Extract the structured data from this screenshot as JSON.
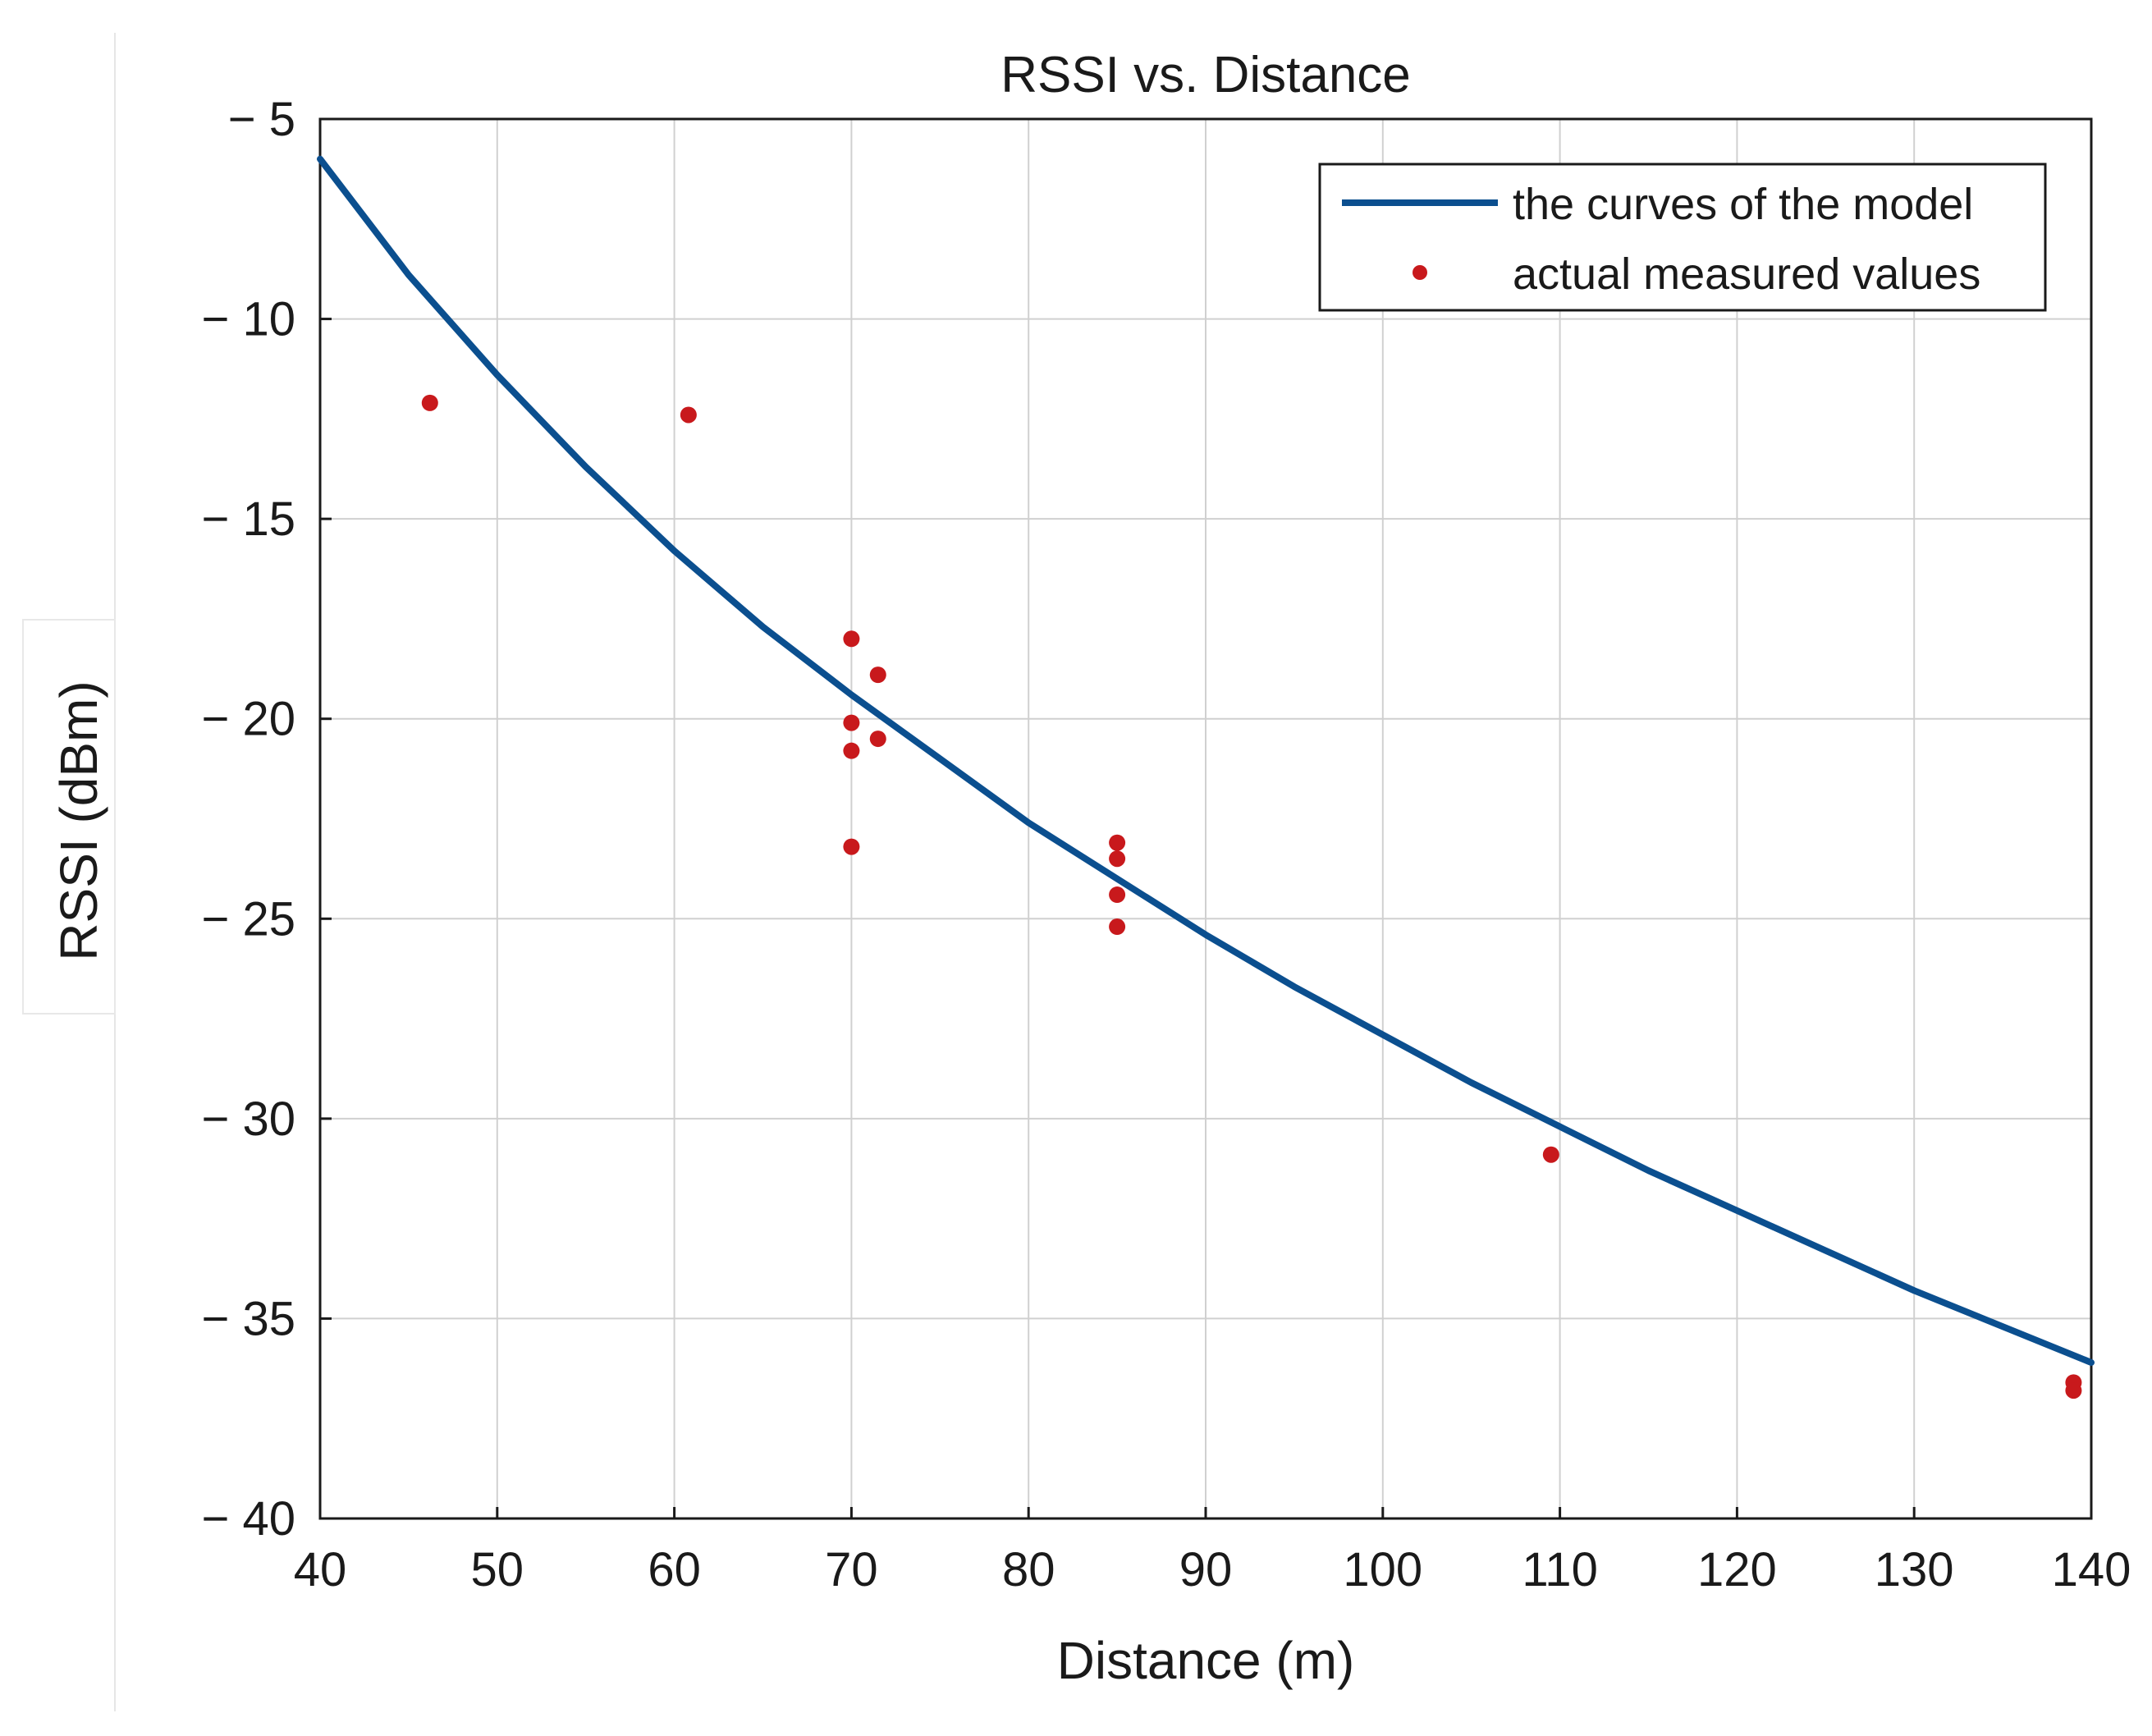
{
  "chart_data": {
    "type": "line",
    "title": "RSSI vs. Distance",
    "xlabel": "Distance (m)",
    "ylabel": "RSSI (dBm)",
    "xlim": [
      40,
      140
    ],
    "ylim": [
      -40,
      -5
    ],
    "xticks": [
      40,
      50,
      60,
      70,
      80,
      90,
      100,
      110,
      120,
      130,
      140
    ],
    "xtick_labels": [
      "40",
      "50",
      "60",
      "70",
      "80",
      "90",
      "100",
      "110",
      "120",
      "130",
      "140"
    ],
    "yticks": [
      -5,
      -10,
      -15,
      -20,
      -25,
      -30,
      -35,
      -40
    ],
    "ytick_labels": [
      "− 5",
      "− 10",
      "− 15",
      "− 20",
      "− 25",
      "− 30",
      "− 35",
      "− 40"
    ],
    "grid": true,
    "legend_position": "top-right",
    "colors": {
      "model": "#0b4f8f",
      "measured": "#c8191c",
      "grid": "#d0d0d0",
      "axis": "#1a1a1a"
    },
    "series": [
      {
        "name": "the curves of the model",
        "kind": "line",
        "x": [
          40,
          45,
          50,
          55,
          60,
          65,
          70,
          75,
          80,
          85,
          90,
          95,
          100,
          105,
          110,
          115,
          120,
          125,
          130,
          135,
          140
        ],
        "y": [
          -6.0,
          -8.9,
          -11.4,
          -13.7,
          -15.8,
          -17.7,
          -19.4,
          -21.0,
          -22.6,
          -24.0,
          -25.4,
          -26.7,
          -27.9,
          -29.1,
          -30.2,
          -31.3,
          -32.3,
          -33.3,
          -34.3,
          -35.2,
          -36.1
        ]
      },
      {
        "name": "actual measured values",
        "kind": "scatter",
        "x": [
          46.2,
          60.8,
          70.0,
          70.0,
          70.0,
          70.0,
          71.5,
          71.5,
          85.0,
          85.0,
          85.0,
          85.0,
          109.5,
          139.0,
          139.0
        ],
        "y": [
          -12.1,
          -12.4,
          -18.0,
          -20.1,
          -20.8,
          -23.2,
          -18.9,
          -20.5,
          -23.1,
          -23.5,
          -24.4,
          -25.2,
          -30.9,
          -36.6,
          -36.8
        ]
      }
    ]
  }
}
